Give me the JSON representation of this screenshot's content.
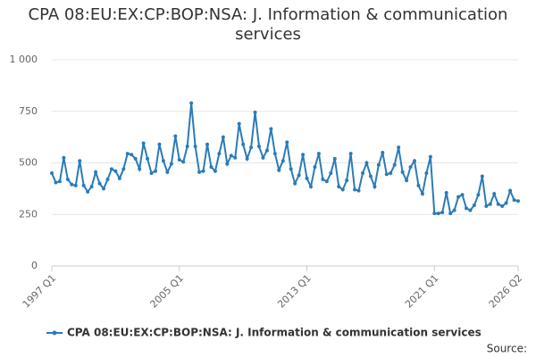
{
  "chart_data": {
    "type": "line",
    "title": "CPA 08:EU:EX:CP:BOP:NSA: J. Information & communication services",
    "source": "Source:",
    "categories": [
      "1997 Q1",
      null,
      null,
      null,
      null,
      null,
      null,
      null,
      null,
      null,
      null,
      null,
      null,
      null,
      null,
      null,
      null,
      null,
      null,
      null,
      null,
      null,
      null,
      null,
      null,
      null,
      null,
      null,
      null,
      null,
      null,
      null,
      "2005 Q1",
      null,
      null,
      null,
      null,
      null,
      null,
      null,
      null,
      null,
      null,
      null,
      null,
      null,
      null,
      null,
      null,
      null,
      null,
      null,
      null,
      null,
      null,
      null,
      null,
      null,
      null,
      null,
      null,
      null,
      null,
      null,
      "2013 Q1",
      null,
      null,
      null,
      null,
      null,
      null,
      null,
      null,
      null,
      null,
      null,
      null,
      null,
      null,
      null,
      null,
      null,
      null,
      null,
      null,
      null,
      null,
      null,
      null,
      null,
      null,
      null,
      null,
      null,
      null,
      null,
      "2021 Q1",
      null,
      null,
      null,
      null,
      null,
      null,
      null,
      null,
      null,
      null,
      null,
      null,
      null,
      null,
      null,
      null,
      null,
      null,
      null,
      null,
      "2026 Q2"
    ],
    "series": [
      {
        "name": "CPA 08:EU:EX:CP:BOP:NSA: J. Information & communication services",
        "color": "#2b7bb9",
        "values": [
          450,
          405,
          410,
          525,
          420,
          395,
          390,
          510,
          390,
          360,
          385,
          455,
          400,
          375,
          420,
          470,
          460,
          425,
          470,
          545,
          540,
          520,
          470,
          595,
          520,
          450,
          460,
          590,
          510,
          455,
          495,
          630,
          515,
          505,
          580,
          790,
          580,
          455,
          460,
          590,
          480,
          460,
          545,
          625,
          495,
          535,
          525,
          690,
          590,
          520,
          575,
          745,
          580,
          525,
          560,
          665,
          545,
          465,
          510,
          600,
          470,
          400,
          440,
          540,
          425,
          385,
          480,
          545,
          420,
          410,
          450,
          520,
          385,
          370,
          415,
          545,
          370,
          365,
          450,
          500,
          435,
          385,
          490,
          550,
          445,
          450,
          490,
          575,
          455,
          415,
          480,
          510,
          390,
          350,
          450,
          530,
          255,
          255,
          260,
          355,
          255,
          270,
          335,
          345,
          280,
          270,
          295,
          345,
          435,
          290,
          300,
          350,
          300,
          290,
          305,
          365,
          320,
          315
        ]
      }
    ],
    "ylim": [
      0,
      1000
    ],
    "yticks": [
      0,
      250,
      500,
      750,
      {
        "value": 1000,
        "label": "1 000"
      }
    ],
    "grid": true
  }
}
